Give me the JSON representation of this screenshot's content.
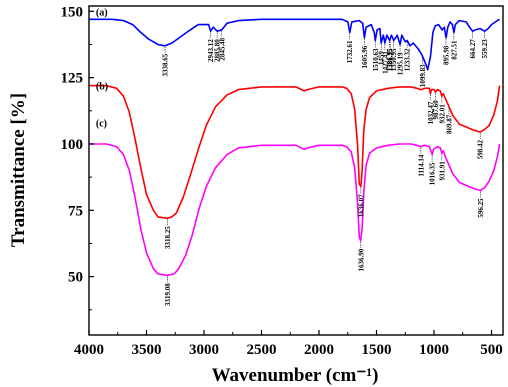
{
  "chart_data": {
    "type": "line",
    "xlabel": "Wavenumber (cm⁻¹)",
    "ylabel": "Transmittance [%]",
    "xlim": [
      4000,
      400
    ],
    "ylim": [
      28,
      152
    ],
    "x_ticks": [
      4000,
      3500,
      3000,
      2500,
      2000,
      1500,
      1000,
      500
    ],
    "y_ticks": [
      50,
      75,
      100,
      125,
      150
    ],
    "grid": false,
    "series": [
      {
        "name": "(a)",
        "color": "#0000ff",
        "points": [
          [
            4000,
            147
          ],
          [
            3900,
            147
          ],
          [
            3800,
            147
          ],
          [
            3700,
            146.5
          ],
          [
            3620,
            145
          ],
          [
            3550,
            142
          ],
          [
            3480,
            139.5
          ],
          [
            3400,
            137.5
          ],
          [
            3340,
            137
          ],
          [
            3280,
            138
          ],
          [
            3200,
            140.5
          ],
          [
            3120,
            143
          ],
          [
            3050,
            145
          ],
          [
            2960,
            145
          ],
          [
            2943,
            142.5
          ],
          [
            2920,
            144
          ],
          [
            2885,
            142.5
          ],
          [
            2845,
            143
          ],
          [
            2800,
            145.5
          ],
          [
            2700,
            146.5
          ],
          [
            2500,
            147
          ],
          [
            2200,
            147
          ],
          [
            2000,
            147
          ],
          [
            1800,
            147
          ],
          [
            1750,
            146
          ],
          [
            1732,
            142
          ],
          [
            1715,
            146
          ],
          [
            1650,
            146.5
          ],
          [
            1620,
            145.5
          ],
          [
            1605,
            140
          ],
          [
            1590,
            144
          ],
          [
            1545,
            145
          ],
          [
            1520,
            142
          ],
          [
            1510,
            139
          ],
          [
            1495,
            143
          ],
          [
            1470,
            143.5
          ],
          [
            1459,
            138
          ],
          [
            1440,
            141
          ],
          [
            1427,
            138
          ],
          [
            1410,
            141
          ],
          [
            1386,
            139
          ],
          [
            1370,
            141
          ],
          [
            1350,
            139
          ],
          [
            1320,
            141
          ],
          [
            1295,
            137.5
          ],
          [
            1280,
            141
          ],
          [
            1250,
            138.5
          ],
          [
            1233,
            139
          ],
          [
            1210,
            137
          ],
          [
            1180,
            138
          ],
          [
            1140,
            136
          ],
          [
            1110,
            134
          ],
          [
            1090,
            132
          ],
          [
            1070,
            130
          ],
          [
            1055,
            128
          ],
          [
            1040,
            131
          ],
          [
            1030,
            133
          ],
          [
            1010,
            142
          ],
          [
            990,
            144.5
          ],
          [
            960,
            145
          ],
          [
            930,
            143
          ],
          [
            910,
            144
          ],
          [
            895,
            140
          ],
          [
            880,
            144
          ],
          [
            860,
            146
          ],
          [
            840,
            145
          ],
          [
            827,
            142
          ],
          [
            815,
            145
          ],
          [
            780,
            146.5
          ],
          [
            720,
            146
          ],
          [
            690,
            144
          ],
          [
            664,
            142.5
          ],
          [
            640,
            143
          ],
          [
            600,
            143.5
          ],
          [
            559,
            142.5
          ],
          [
            530,
            143.5
          ],
          [
            500,
            145
          ],
          [
            450,
            146.5
          ],
          [
            430,
            147
          ]
        ]
      },
      {
        "name": "(b)",
        "color": "#ff0000",
        "points": [
          [
            4000,
            122
          ],
          [
            3850,
            122
          ],
          [
            3760,
            121
          ],
          [
            3700,
            118
          ],
          [
            3650,
            112
          ],
          [
            3600,
            102
          ],
          [
            3550,
            91
          ],
          [
            3500,
            81
          ],
          [
            3440,
            75
          ],
          [
            3400,
            72.5
          ],
          [
            3320,
            72
          ],
          [
            3280,
            72.5
          ],
          [
            3240,
            74
          ],
          [
            3180,
            80
          ],
          [
            3120,
            88
          ],
          [
            3050,
            98
          ],
          [
            2980,
            107
          ],
          [
            2900,
            114
          ],
          [
            2800,
            118.5
          ],
          [
            2700,
            120.5
          ],
          [
            2500,
            121.5
          ],
          [
            2200,
            121.5
          ],
          [
            2130,
            120
          ],
          [
            2100,
            120.5
          ],
          [
            2000,
            121.5
          ],
          [
            1800,
            121.5
          ],
          [
            1760,
            121
          ],
          [
            1720,
            119
          ],
          [
            1690,
            113
          ],
          [
            1665,
            100
          ],
          [
            1650,
            85
          ],
          [
            1636,
            84
          ],
          [
            1625,
            90
          ],
          [
            1610,
            105
          ],
          [
            1590,
            113
          ],
          [
            1560,
            117.5
          ],
          [
            1500,
            120
          ],
          [
            1400,
            121
          ],
          [
            1300,
            121.5
          ],
          [
            1200,
            121.5
          ],
          [
            1150,
            121
          ],
          [
            1114,
            120.5
          ],
          [
            1080,
            121
          ],
          [
            1040,
            121
          ],
          [
            1032,
            119
          ],
          [
            1020,
            120.5
          ],
          [
            1000,
            120.5
          ],
          [
            987,
            119.5
          ],
          [
            970,
            120.5
          ],
          [
            945,
            120
          ],
          [
            932,
            118
          ],
          [
            920,
            119
          ],
          [
            900,
            117
          ],
          [
            869,
            114
          ],
          [
            840,
            111
          ],
          [
            780,
            107.5
          ],
          [
            700,
            106
          ],
          [
            640,
            105
          ],
          [
            598,
            104.5
          ],
          [
            560,
            105.5
          ],
          [
            520,
            107
          ],
          [
            480,
            111
          ],
          [
            450,
            116
          ],
          [
            430,
            122
          ]
        ]
      },
      {
        "name": "(c)",
        "color": "#ff00ff",
        "points": [
          [
            4000,
            100
          ],
          [
            3850,
            100
          ],
          [
            3760,
            99
          ],
          [
            3700,
            96
          ],
          [
            3650,
            90
          ],
          [
            3600,
            80
          ],
          [
            3550,
            68
          ],
          [
            3500,
            59
          ],
          [
            3440,
            53
          ],
          [
            3400,
            51
          ],
          [
            3320,
            50.5
          ],
          [
            3260,
            51
          ],
          [
            3220,
            53
          ],
          [
            3160,
            58
          ],
          [
            3100,
            66
          ],
          [
            3040,
            76
          ],
          [
            2980,
            84
          ],
          [
            2900,
            91
          ],
          [
            2800,
            96
          ],
          [
            2700,
            98.5
          ],
          [
            2500,
            99.5
          ],
          [
            2200,
            99.5
          ],
          [
            2130,
            98
          ],
          [
            2100,
            98.5
          ],
          [
            2000,
            99.5
          ],
          [
            1800,
            99.5
          ],
          [
            1760,
            99
          ],
          [
            1720,
            97
          ],
          [
            1690,
            91
          ],
          [
            1665,
            78
          ],
          [
            1650,
            65
          ],
          [
            1637,
            63.5
          ],
          [
            1625,
            68
          ],
          [
            1610,
            82
          ],
          [
            1590,
            92
          ],
          [
            1560,
            96.5
          ],
          [
            1500,
            98.5
          ],
          [
            1400,
            99.5
          ],
          [
            1300,
            100
          ],
          [
            1200,
            100
          ],
          [
            1150,
            99.5
          ],
          [
            1114,
            99
          ],
          [
            1080,
            99.5
          ],
          [
            1040,
            99
          ],
          [
            1016,
            96
          ],
          [
            1005,
            98
          ],
          [
            987,
            98.5
          ],
          [
            970,
            99
          ],
          [
            945,
            98.5
          ],
          [
            932,
            96.5
          ],
          [
            920,
            97.5
          ],
          [
            900,
            95
          ],
          [
            869,
            92
          ],
          [
            840,
            89
          ],
          [
            780,
            85.5
          ],
          [
            700,
            84
          ],
          [
            640,
            83
          ],
          [
            596,
            82.5
          ],
          [
            560,
            83.5
          ],
          [
            520,
            86
          ],
          [
            480,
            90
          ],
          [
            450,
            95
          ],
          [
            430,
            100
          ]
        ]
      }
    ],
    "panel_labels": [
      {
        "text": "(a)",
        "x": 3940,
        "y": 148.5
      },
      {
        "text": "(b)",
        "x": 3940,
        "y": 120.5
      },
      {
        "text": "(c)",
        "x": 3940,
        "y": 106.5
      }
    ],
    "peaks": [
      {
        "label": "3338.65",
        "x": 3338.65,
        "y": 137,
        "dir": "down"
      },
      {
        "label": "2943.12",
        "x": 2943.12,
        "y": 142.5,
        "dir": "down"
      },
      {
        "label": "2885.80",
        "x": 2885.8,
        "y": 142.5,
        "dir": "down"
      },
      {
        "label": "2845.48",
        "x": 2845.48,
        "y": 143,
        "dir": "down"
      },
      {
        "label": "1732.61",
        "x": 1732.61,
        "y": 142,
        "dir": "down"
      },
      {
        "label": "1605.96",
        "x": 1605.96,
        "y": 140,
        "dir": "down"
      },
      {
        "label": "1510.63",
        "x": 1510.63,
        "y": 139,
        "dir": "down"
      },
      {
        "label": "1459",
        "x": 1459,
        "y": 138,
        "dir": "down"
      },
      {
        "label": "1427.41",
        "x": 1427.41,
        "y": 138,
        "dir": "down"
      },
      {
        "label": "1386.95",
        "x": 1386.95,
        "y": 139,
        "dir": "down"
      },
      {
        "label": "1381.15",
        "x": 1381.15,
        "y": 139,
        "dir": "down"
      },
      {
        "label": "1350.95",
        "x": 1350.95,
        "y": 139,
        "dir": "down"
      },
      {
        "label": "1295.19",
        "x": 1295.19,
        "y": 137.5,
        "dir": "down"
      },
      {
        "label": "1233.32",
        "x": 1233.32,
        "y": 139,
        "dir": "down"
      },
      {
        "label": "1099.83",
        "x": 1099.83,
        "y": 133,
        "dir": "down"
      },
      {
        "label": "895.98",
        "x": 895.98,
        "y": 140,
        "dir": "down"
      },
      {
        "label": "827.51",
        "x": 827.51,
        "y": 142,
        "dir": "down"
      },
      {
        "label": "664.27",
        "x": 664.27,
        "y": 142.5,
        "dir": "down"
      },
      {
        "label": "559.23",
        "x": 559.23,
        "y": 142.5,
        "dir": "down"
      },
      {
        "label": "1032.47",
        "x": 1032.47,
        "y": 119,
        "dir": "down"
      },
      {
        "label": "987.60",
        "x": 987.6,
        "y": 119.5,
        "dir": "down"
      },
      {
        "label": "932.01",
        "x": 932.01,
        "y": 118,
        "dir": "down"
      },
      {
        "label": "869.87",
        "x": 869.87,
        "y": 114,
        "dir": "down"
      },
      {
        "label": "1636.07",
        "x": 1636.07,
        "y": 84,
        "dir": "down"
      },
      {
        "label": "598.42",
        "x": 598.42,
        "y": 104.5,
        "dir": "down"
      },
      {
        "label": "3318.25",
        "x": 3318.25,
        "y": 72,
        "dir": "down"
      },
      {
        "label": "1114.14",
        "x": 1114.14,
        "y": 99,
        "dir": "down"
      },
      {
        "label": "1016.35",
        "x": 1016.35,
        "y": 96,
        "dir": "down"
      },
      {
        "label": "931.91",
        "x": 931.91,
        "y": 96.5,
        "dir": "down"
      },
      {
        "label": "596.25",
        "x": 596.25,
        "y": 82.5,
        "dir": "down"
      },
      {
        "label": "1636.90",
        "x": 1636.9,
        "y": 63.5,
        "dir": "down"
      },
      {
        "label": "3319.08",
        "x": 3319.08,
        "y": 50.5,
        "dir": "down"
      }
    ]
  }
}
